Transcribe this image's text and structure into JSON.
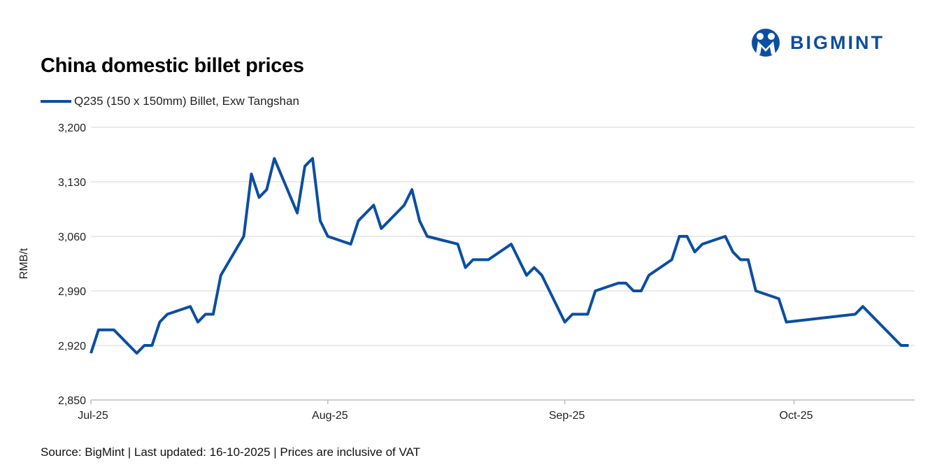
{
  "logo_text": "BIGMINT",
  "colors": {
    "line": "#0b4ea2",
    "grid": "#e3e3e3"
  },
  "source": "Source: BigMint | Last updated: 16-10-2025 | Prices are inclusive of VAT",
  "chart_data": {
    "type": "line",
    "title": "China domestic billet prices",
    "ylabel": "RMB/t",
    "xlabel": "",
    "ylim": [
      2850,
      3200
    ],
    "yticks": [
      2850,
      2920,
      2990,
      3060,
      3130,
      3200
    ],
    "ytick_labels": [
      "2,850",
      "2,920",
      "2,990",
      "3,060",
      "3,130",
      "3,200"
    ],
    "xticks": [
      {
        "date": "2025-07-01",
        "label": "Jul-25"
      },
      {
        "date": "2025-08-01",
        "label": "Aug-25"
      },
      {
        "date": "2025-09-01",
        "label": "Sep-25"
      },
      {
        "date": "2025-10-01",
        "label": "Oct-25"
      }
    ],
    "xlim": [
      "2025-07-01",
      "2025-10-16"
    ],
    "grid": true,
    "legend_position": "top-left",
    "series": [
      {
        "name": "Q235 (150 x 150mm) Billet, Exw Tangshan",
        "points": [
          [
            "2025-07-01",
            2910
          ],
          [
            "2025-07-02",
            2940
          ],
          [
            "2025-07-04",
            2940
          ],
          [
            "2025-07-07",
            2910
          ],
          [
            "2025-07-08",
            2920
          ],
          [
            "2025-07-09",
            2920
          ],
          [
            "2025-07-10",
            2950
          ],
          [
            "2025-07-11",
            2960
          ],
          [
            "2025-07-14",
            2970
          ],
          [
            "2025-07-15",
            2950
          ],
          [
            "2025-07-16",
            2960
          ],
          [
            "2025-07-17",
            2960
          ],
          [
            "2025-07-18",
            3010
          ],
          [
            "2025-07-21",
            3060
          ],
          [
            "2025-07-22",
            3140
          ],
          [
            "2025-07-23",
            3110
          ],
          [
            "2025-07-24",
            3120
          ],
          [
            "2025-07-25",
            3160
          ],
          [
            "2025-07-28",
            3090
          ],
          [
            "2025-07-29",
            3150
          ],
          [
            "2025-07-30",
            3160
          ],
          [
            "2025-07-31",
            3080
          ],
          [
            "2025-08-01",
            3060
          ],
          [
            "2025-08-04",
            3050
          ],
          [
            "2025-08-05",
            3080
          ],
          [
            "2025-08-07",
            3100
          ],
          [
            "2025-08-08",
            3070
          ],
          [
            "2025-08-11",
            3100
          ],
          [
            "2025-08-12",
            3120
          ],
          [
            "2025-08-13",
            3080
          ],
          [
            "2025-08-14",
            3060
          ],
          [
            "2025-08-18",
            3050
          ],
          [
            "2025-08-19",
            3020
          ],
          [
            "2025-08-20",
            3030
          ],
          [
            "2025-08-22",
            3030
          ],
          [
            "2025-08-25",
            3050
          ],
          [
            "2025-08-27",
            3010
          ],
          [
            "2025-08-28",
            3020
          ],
          [
            "2025-08-29",
            3010
          ],
          [
            "2025-09-01",
            2950
          ],
          [
            "2025-09-02",
            2960
          ],
          [
            "2025-09-04",
            2960
          ],
          [
            "2025-09-05",
            2990
          ],
          [
            "2025-09-08",
            3000
          ],
          [
            "2025-09-09",
            3000
          ],
          [
            "2025-09-10",
            2990
          ],
          [
            "2025-09-11",
            2990
          ],
          [
            "2025-09-12",
            3010
          ],
          [
            "2025-09-15",
            3030
          ],
          [
            "2025-09-16",
            3060
          ],
          [
            "2025-09-17",
            3060
          ],
          [
            "2025-09-18",
            3040
          ],
          [
            "2025-09-19",
            3050
          ],
          [
            "2025-09-22",
            3060
          ],
          [
            "2025-09-23",
            3040
          ],
          [
            "2025-09-24",
            3030
          ],
          [
            "2025-09-25",
            3030
          ],
          [
            "2025-09-26",
            2990
          ],
          [
            "2025-09-29",
            2980
          ],
          [
            "2025-09-30",
            2950
          ],
          [
            "2025-10-09",
            2960
          ],
          [
            "2025-10-10",
            2970
          ],
          [
            "2025-10-15",
            2920
          ],
          [
            "2025-10-16",
            2920
          ]
        ]
      }
    ]
  }
}
